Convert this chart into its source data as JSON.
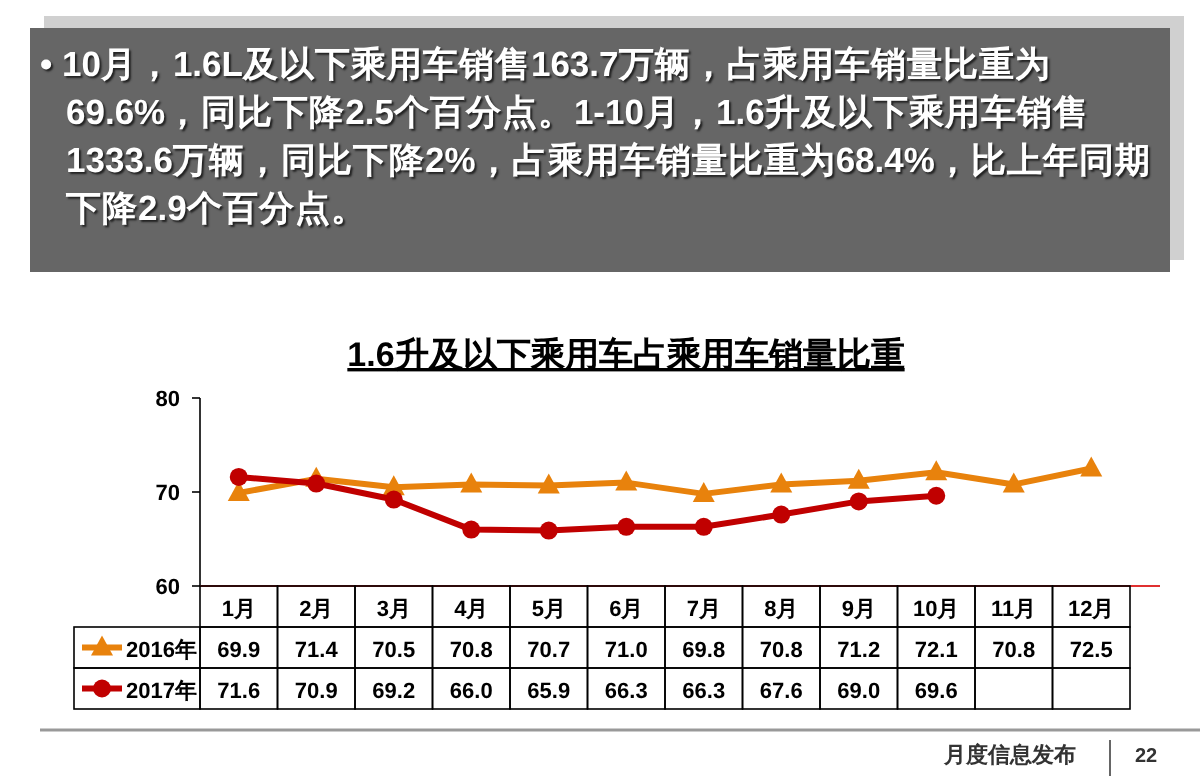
{
  "chart_data": {
    "type": "line",
    "title": "1.6升及以下乘用车占乘用车销量比重",
    "categories": [
      "1月",
      "2月",
      "3月",
      "4月",
      "5月",
      "6月",
      "7月",
      "8月",
      "9月",
      "10月",
      "11月",
      "12月"
    ],
    "series": [
      {
        "name": "2016年",
        "color": "#e8820c",
        "marker": "triangle",
        "values": [
          69.9,
          71.4,
          70.5,
          70.8,
          70.7,
          71.0,
          69.8,
          70.8,
          71.2,
          72.1,
          70.8,
          72.5
        ],
        "value_labels": [
          "69.9",
          "71.4",
          "70.5",
          "70.8",
          "70.7",
          "71.0",
          "69.8",
          "70.8",
          "71.2",
          "72.1",
          "70.8",
          "72.5"
        ]
      },
      {
        "name": "2017年",
        "color": "#c00000",
        "marker": "circle",
        "values": [
          71.6,
          70.9,
          69.2,
          66.0,
          65.9,
          66.3,
          66.3,
          67.6,
          69.0,
          69.6,
          null,
          null
        ],
        "value_labels": [
          "71.6",
          "70.9",
          "69.2",
          "66.0",
          "65.9",
          "66.3",
          "66.3",
          "67.6",
          "69.0",
          "69.6",
          null,
          null
        ]
      }
    ],
    "ylim": [
      60,
      80
    ],
    "yticks": [
      60,
      70,
      80
    ],
    "grid": false,
    "legend": "bottom",
    "annotations": [
      "• 10月，1.6L及以下乘用车销售163.7万辆，占乘用车销量比重为69.6%，同比下降2.5个百分点。1-10月，1.6升及以下乘用车销售1333.6万辆，同比下降2%，占乘用车销量比重为68.4%，比上年同期下降2.9个百分点。",
      "月度信息发布",
      "22"
    ]
  }
}
